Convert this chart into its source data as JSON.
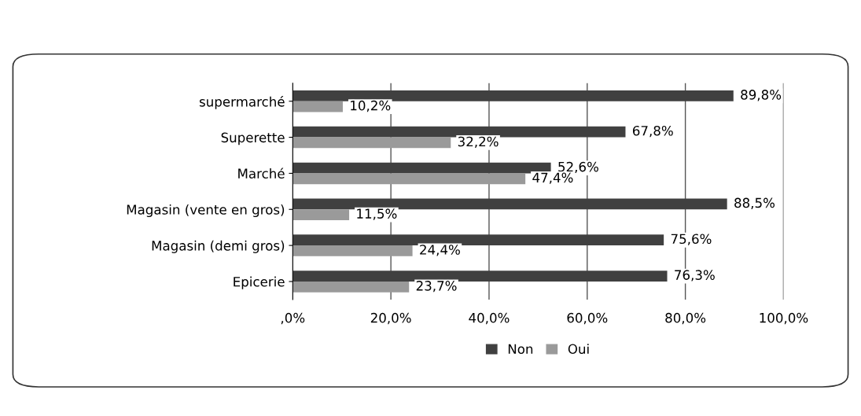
{
  "chart_data": {
    "type": "bar",
    "orientation": "horizontal",
    "categories": [
      "supermarché",
      "Superette",
      "Marché",
      "Magasin (vente en gros)",
      "Magasin (demi gros)",
      "Epicerie"
    ],
    "series": [
      {
        "name": "Non",
        "color": "#404040",
        "values": [
          89.8,
          67.8,
          52.6,
          88.5,
          75.6,
          76.3
        ],
        "value_labels": [
          "89,8%",
          "67,8%",
          "52,6%",
          "88,5%",
          "75,6%",
          "76,3%"
        ]
      },
      {
        "name": "Oui",
        "color": "#9a9a9a",
        "values": [
          10.2,
          32.2,
          47.4,
          11.5,
          24.4,
          23.7
        ],
        "value_labels": [
          "10,2%",
          "32,2%",
          "47,4%",
          "11,5%",
          "24,4%",
          "23,7%"
        ]
      }
    ],
    "xlim": [
      0,
      100
    ],
    "xticks": [
      {
        "value": 0,
        "label": ",0%"
      },
      {
        "value": 20,
        "label": "20,0%"
      },
      {
        "value": 40,
        "label": "40,0%"
      },
      {
        "value": 60,
        "label": "60,0%"
      },
      {
        "value": 80,
        "label": "80,0%"
      },
      {
        "value": 100,
        "label": "100,0%"
      }
    ],
    "grid": "x",
    "legend": "bottom"
  }
}
